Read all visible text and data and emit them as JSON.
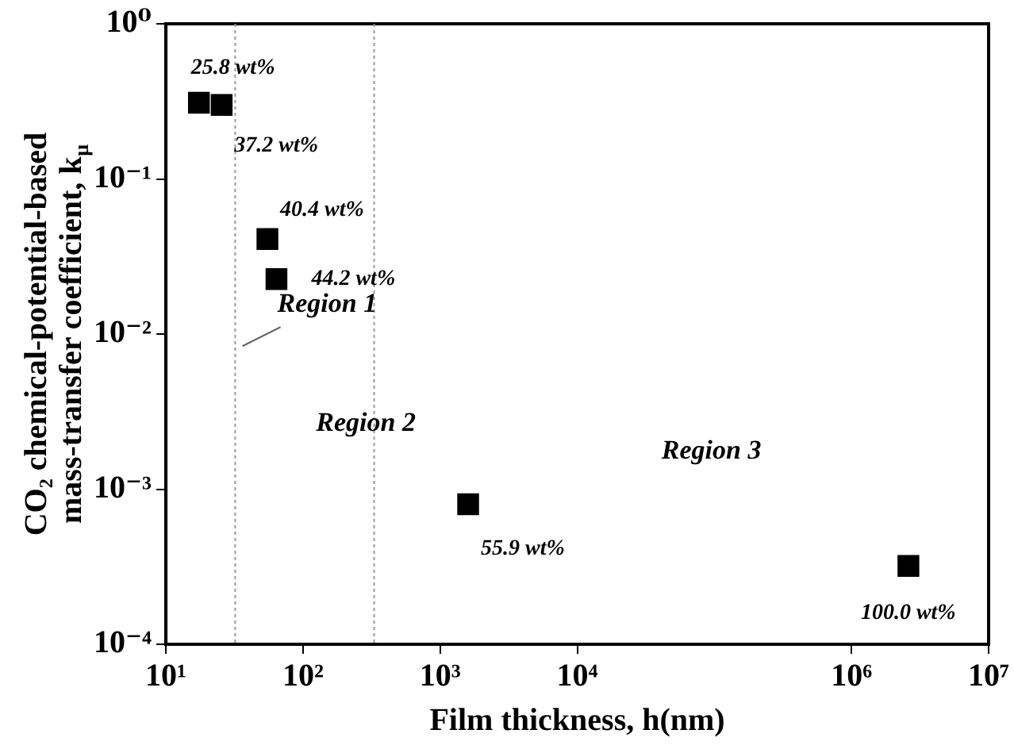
{
  "chart_data": {
    "type": "scatter",
    "xlabel": "Film thickness, h(nm)",
    "ylabel": "CO₂ chemical-potential-based mass-transfer coefficient, k$_{μ}$",
    "x": [
      17.4,
      25.5,
      55,
      64,
      1600,
      2600000
    ],
    "values": [
      0.31,
      0.3,
      0.041,
      0.0226,
      0.0008,
      0.00032
    ],
    "color": "#000000",
    "marker": "square",
    "log": "xy",
    "grid": false,
    "legend": false,
    "xlim": [
      10,
      10000000
    ],
    "ylim": [
      0.0001,
      1
    ],
    "xticks": [
      {
        "value": 10,
        "label": "10¹"
      },
      {
        "value": 100,
        "label": "10²"
      },
      {
        "value": 1000,
        "label": "10³"
      },
      {
        "value": 10000,
        "label": "10⁴"
      },
      {
        "value": 1000000,
        "label": "10⁶"
      },
      {
        "value": 10000000,
        "label": "10⁷"
      }
    ],
    "yticks": [
      {
        "value": 0.0001,
        "label": "10⁻⁴"
      },
      {
        "value": 0.001,
        "label": "10⁻³"
      },
      {
        "value": 0.01,
        "label": "10⁻²"
      },
      {
        "value": 0.1,
        "label": "10⁻¹"
      },
      {
        "value": 1,
        "label": "10⁰"
      }
    ],
    "ref_lines": [
      {
        "axis": "x",
        "value": 32,
        "color": "#999999",
        "line_style": "dotted"
      },
      {
        "axis": "x",
        "value": 330,
        "color": "#999999",
        "line_style": "dotted"
      }
    ],
    "annotations": [
      {
        "text": "25.8 wt%",
        "x": 17.4,
        "y": 0.31
      },
      {
        "text": "37.2 wt%",
        "x": 25.5,
        "y": 0.3
      },
      {
        "text": "40.4 wt%",
        "x": 55,
        "y": 0.041
      },
      {
        "text": "44.2 wt%",
        "x": 64,
        "y": 0.0226
      },
      {
        "text": "55.9 wt%",
        "x": 1600,
        "y": 0.0008
      },
      {
        "text": "100.0 wt%",
        "x": 2600000,
        "y": 0.00032
      },
      "Region 1",
      "Region 2",
      "Region 3"
    ]
  }
}
